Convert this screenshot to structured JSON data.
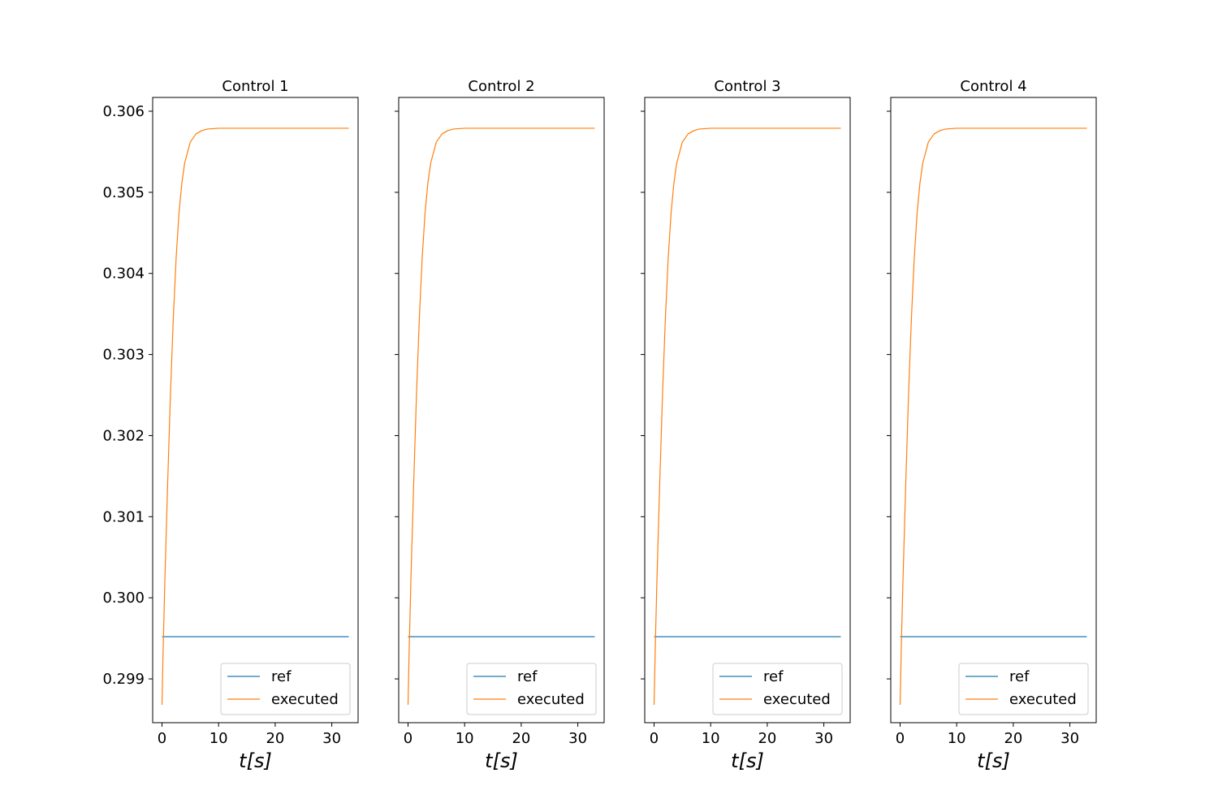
{
  "chart_data": [
    {
      "type": "line",
      "title": "Control 1",
      "xlabel": "t[s]",
      "ylabel": "",
      "xlim": [
        -1.65,
        34.65
      ],
      "ylim": [
        0.29846,
        0.30617
      ],
      "xticks": [
        0,
        10,
        20,
        30
      ],
      "yticks": [
        0.299,
        0.3,
        0.301,
        0.302,
        0.303,
        0.304,
        0.305,
        0.306
      ],
      "show_yticklabels": true,
      "legend": "lower-right",
      "grid": false,
      "series": [
        {
          "name": "ref",
          "color": "#1f77b4",
          "x": [
            0,
            33
          ],
          "y": [
            0.29952,
            0.29952
          ]
        },
        {
          "name": "executed",
          "color": "#ff7f0e",
          "x": [
            0,
            0.2,
            0.5,
            1,
            1.5,
            2,
            2.5,
            3,
            3.5,
            4,
            5,
            6,
            7,
            8,
            10,
            12,
            15,
            20,
            25,
            33
          ],
          "y": [
            0.29868,
            0.29935,
            0.3002,
            0.30141,
            0.30252,
            0.30345,
            0.30419,
            0.30474,
            0.30511,
            0.30536,
            0.30562,
            0.30572,
            0.30576,
            0.30578,
            0.30579,
            0.30579,
            0.30579,
            0.30579,
            0.30579,
            0.30579
          ]
        }
      ]
    },
    {
      "type": "line",
      "title": "Control 2",
      "xlabel": "t[s]",
      "ylabel": "",
      "xlim": [
        -1.65,
        34.65
      ],
      "ylim": [
        0.29846,
        0.30617
      ],
      "xticks": [
        0,
        10,
        20,
        30
      ],
      "yticks": [
        0.299,
        0.3,
        0.301,
        0.302,
        0.303,
        0.304,
        0.305,
        0.306
      ],
      "show_yticklabels": false,
      "legend": "lower-right",
      "grid": false,
      "series": [
        {
          "name": "ref",
          "color": "#1f77b4",
          "x": [
            0,
            33
          ],
          "y": [
            0.29952,
            0.29952
          ]
        },
        {
          "name": "executed",
          "color": "#ff7f0e",
          "x": [
            0,
            0.2,
            0.5,
            1,
            1.5,
            2,
            2.5,
            3,
            3.5,
            4,
            5,
            6,
            7,
            8,
            10,
            12,
            15,
            20,
            25,
            33
          ],
          "y": [
            0.29868,
            0.29935,
            0.3002,
            0.30141,
            0.30252,
            0.30345,
            0.30419,
            0.30474,
            0.30511,
            0.30536,
            0.30562,
            0.30572,
            0.30576,
            0.30578,
            0.30579,
            0.30579,
            0.30579,
            0.30579,
            0.30579,
            0.30579
          ]
        }
      ]
    },
    {
      "type": "line",
      "title": "Control 3",
      "xlabel": "t[s]",
      "ylabel": "",
      "xlim": [
        -1.65,
        34.65
      ],
      "ylim": [
        0.29846,
        0.30617
      ],
      "xticks": [
        0,
        10,
        20,
        30
      ],
      "yticks": [
        0.299,
        0.3,
        0.301,
        0.302,
        0.303,
        0.304,
        0.305,
        0.306
      ],
      "show_yticklabels": false,
      "legend": "lower-right",
      "grid": false,
      "series": [
        {
          "name": "ref",
          "color": "#1f77b4",
          "x": [
            0,
            33
          ],
          "y": [
            0.29952,
            0.29952
          ]
        },
        {
          "name": "executed",
          "color": "#ff7f0e",
          "x": [
            0,
            0.2,
            0.5,
            1,
            1.5,
            2,
            2.5,
            3,
            3.5,
            4,
            5,
            6,
            7,
            8,
            10,
            12,
            15,
            20,
            25,
            33
          ],
          "y": [
            0.29868,
            0.29935,
            0.3002,
            0.30141,
            0.30252,
            0.30345,
            0.30419,
            0.30474,
            0.30511,
            0.30536,
            0.30562,
            0.30572,
            0.30576,
            0.30578,
            0.30579,
            0.30579,
            0.30579,
            0.30579,
            0.30579,
            0.30579
          ]
        }
      ]
    },
    {
      "type": "line",
      "title": "Control 4",
      "xlabel": "t[s]",
      "ylabel": "",
      "xlim": [
        -1.65,
        34.65
      ],
      "ylim": [
        0.29846,
        0.30617
      ],
      "xticks": [
        0,
        10,
        20,
        30
      ],
      "yticks": [
        0.299,
        0.3,
        0.301,
        0.302,
        0.303,
        0.304,
        0.305,
        0.306
      ],
      "show_yticklabels": false,
      "legend": "lower-right",
      "grid": false,
      "series": [
        {
          "name": "ref",
          "color": "#1f77b4",
          "x": [
            0,
            33
          ],
          "y": [
            0.29952,
            0.29952
          ]
        },
        {
          "name": "executed",
          "color": "#ff7f0e",
          "x": [
            0,
            0.2,
            0.5,
            1,
            1.5,
            2,
            2.5,
            3,
            3.5,
            4,
            5,
            6,
            7,
            8,
            10,
            12,
            15,
            20,
            25,
            33
          ],
          "y": [
            0.29868,
            0.29935,
            0.3002,
            0.30141,
            0.30252,
            0.30345,
            0.30419,
            0.30474,
            0.30511,
            0.30536,
            0.30562,
            0.30572,
            0.30576,
            0.30578,
            0.30579,
            0.30579,
            0.30579,
            0.30579,
            0.30579,
            0.30579
          ]
        }
      ]
    }
  ]
}
